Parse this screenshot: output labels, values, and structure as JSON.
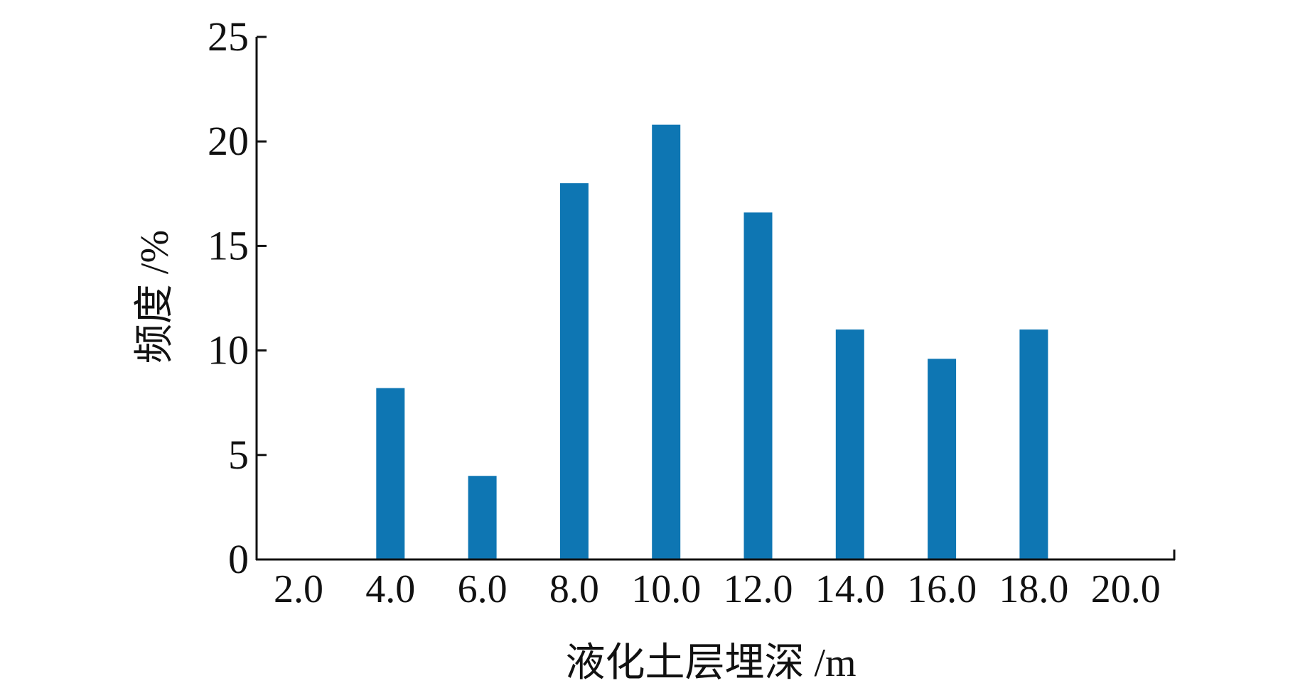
{
  "chart_data": {
    "type": "bar",
    "xlabel": "液化土层埋深 /m",
    "ylabel": "频度 /%",
    "categories": [
      "2.0",
      "4.0",
      "6.0",
      "8.0",
      "10.0",
      "12.0",
      "14.0",
      "16.0",
      "18.0",
      "20.0"
    ],
    "values": [
      0,
      8.2,
      4.0,
      18.0,
      20.8,
      16.6,
      11.0,
      9.6,
      11.0,
      0
    ],
    "ylim": [
      0,
      25
    ],
    "yticks": [
      "0",
      "5",
      "10",
      "15",
      "20",
      "25"
    ],
    "grid": false,
    "bar_color": "#0e76b3"
  }
}
